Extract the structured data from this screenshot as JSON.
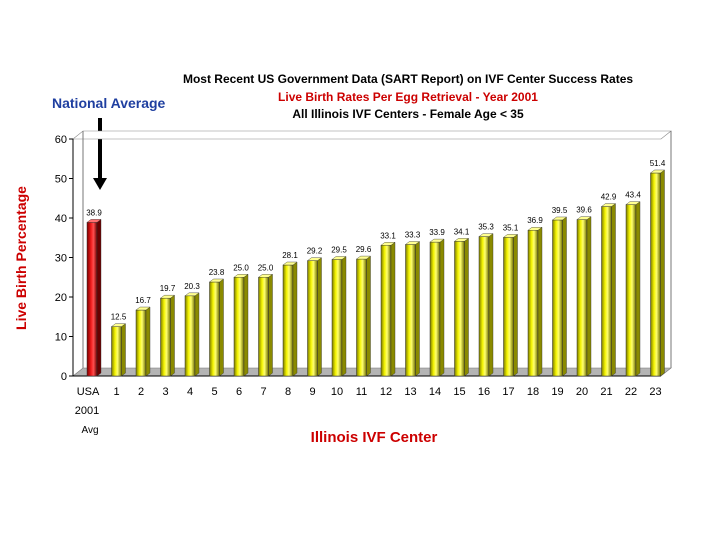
{
  "chart_data": {
    "type": "bar",
    "title": "Most Recent US Government Data (SART Report) on IVF Center Success Rates",
    "subtitle": "Live Birth Rates Per Egg Retrieval - Year 2001",
    "subtitle2": "All Illinois IVF Centers - Female Age < 35",
    "annotation": "National Average",
    "xlabel": "Illinois IVF Center",
    "ylabel": "Live Birth Percentage",
    "ylim": [
      0,
      60
    ],
    "yticks": [
      0,
      10,
      20,
      30,
      40,
      50,
      60
    ],
    "grid": false,
    "categories": [
      "USA",
      "1",
      "2",
      "3",
      "4",
      "5",
      "6",
      "7",
      "8",
      "9",
      "10",
      "11",
      "12",
      "13",
      "14",
      "15",
      "16",
      "17",
      "18",
      "19",
      "20",
      "21",
      "22",
      "23"
    ],
    "category_sublabels": {
      "line2": "2001",
      "line3": "Avg"
    },
    "values": [
      38.9,
      12.5,
      16.7,
      19.7,
      20.3,
      23.8,
      25.0,
      25.0,
      28.1,
      29.2,
      29.5,
      29.6,
      33.1,
      33.3,
      33.9,
      34.1,
      35.3,
      35.1,
      36.9,
      39.5,
      39.6,
      42.9,
      43.4,
      51.4
    ],
    "value_labels": [
      "38.9",
      "12.5",
      "16.7",
      "19.7",
      "20.3",
      "23.8",
      "25.0",
      "25.0",
      "28.1",
      "29.2",
      "29.5",
      "29.6",
      "33.1",
      "33.3",
      "33.9",
      "34.1",
      "35.3",
      "35.1",
      "36.9",
      "39.5",
      "39.6",
      "42.9",
      "43.4",
      "51.4"
    ],
    "colors": {
      "highlight": "#e01010",
      "bar": "#f0f000",
      "bar_dark": "#8a8a00",
      "title": "#000000",
      "subtitle": "#cc0000",
      "annotation": "#1f3fa0",
      "xlabel": "#cc0000",
      "ylabel": "#cc0000"
    }
  }
}
